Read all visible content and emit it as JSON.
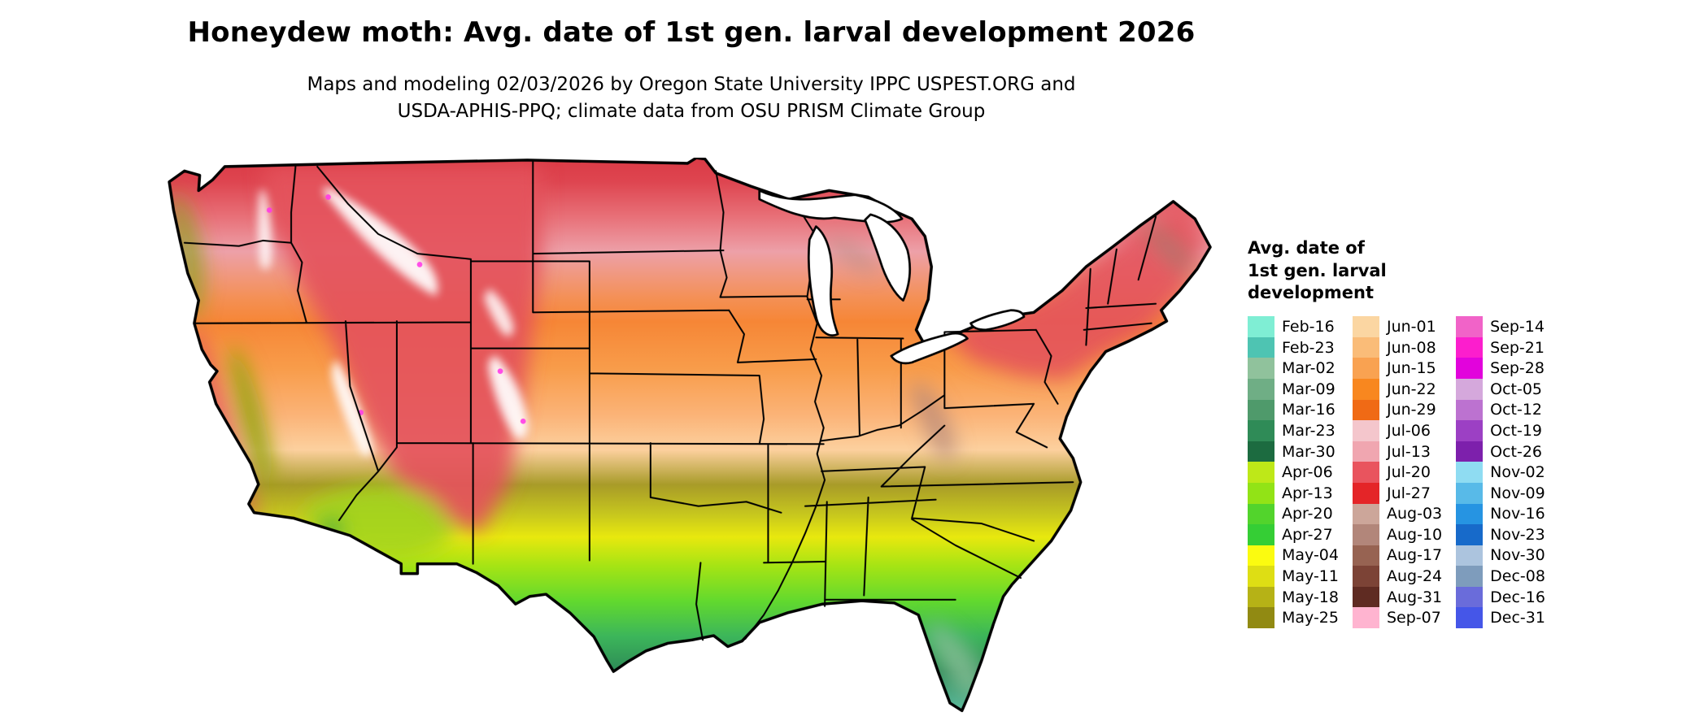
{
  "title": "Honeydew moth: Avg. date of 1st gen. larval development 2026",
  "subtitle": {
    "line1": "Maps and modeling 02/03/2026 by Oregon State University IPPC USPEST.ORG and",
    "line2": "USDA-APHIS-PPQ; climate data from OSU PRISM Climate Group"
  },
  "legend": {
    "title_line1": "Avg. date of",
    "title_line2": "1st gen. larval",
    "title_line3": "development",
    "columns": [
      {
        "entries": [
          {
            "label": "Feb-16",
            "color": "#7FEED4"
          },
          {
            "label": "Feb-23",
            "color": "#4EC4B2"
          },
          {
            "label": "Mar-02",
            "color": "#90C29C"
          },
          {
            "label": "Mar-09",
            "color": "#6FAE85"
          },
          {
            "label": "Mar-16",
            "color": "#4F9A6B"
          },
          {
            "label": "Mar-23",
            "color": "#2F8B57"
          },
          {
            "label": "Mar-30",
            "color": "#1C6B40"
          },
          {
            "label": "Apr-06",
            "color": "#BEE818"
          },
          {
            "label": "Apr-13",
            "color": "#92E316"
          },
          {
            "label": "Apr-20",
            "color": "#52D42C"
          },
          {
            "label": "Apr-27",
            "color": "#35CE35"
          },
          {
            "label": "May-04",
            "color": "#FBFB10"
          },
          {
            "label": "May-11",
            "color": "#DEDE14"
          },
          {
            "label": "May-18",
            "color": "#B6B216"
          },
          {
            "label": "May-25",
            "color": "#918A12"
          }
        ]
      },
      {
        "entries": [
          {
            "label": "Jun-01",
            "color": "#FBD6A2"
          },
          {
            "label": "Jun-08",
            "color": "#FABC78"
          },
          {
            "label": "Jun-15",
            "color": "#F9A251"
          },
          {
            "label": "Jun-22",
            "color": "#F8871F"
          },
          {
            "label": "Jun-29",
            "color": "#F06A15"
          },
          {
            "label": "Jul-06",
            "color": "#F4C6CC"
          },
          {
            "label": "Jul-13",
            "color": "#F0A6B0"
          },
          {
            "label": "Jul-20",
            "color": "#E9545E"
          },
          {
            "label": "Jul-27",
            "color": "#E42528"
          },
          {
            "label": "Aug-03",
            "color": "#CCA69A"
          },
          {
            "label": "Aug-10",
            "color": "#B2867A"
          },
          {
            "label": "Aug-17",
            "color": "#976352"
          },
          {
            "label": "Aug-24",
            "color": "#7C4336"
          },
          {
            "label": "Aug-31",
            "color": "#5F2B22"
          },
          {
            "label": "Sep-07",
            "color": "#FFB4D0"
          }
        ]
      },
      {
        "entries": [
          {
            "label": "Sep-14",
            "color": "#F163C8"
          },
          {
            "label": "Sep-21",
            "color": "#FC1ECD"
          },
          {
            "label": "Sep-28",
            "color": "#E203DC"
          },
          {
            "label": "Oct-05",
            "color": "#D5A8DC"
          },
          {
            "label": "Oct-12",
            "color": "#BC72D0"
          },
          {
            "label": "Oct-19",
            "color": "#9C40C4"
          },
          {
            "label": "Oct-26",
            "color": "#7D20AC"
          },
          {
            "label": "Nov-02",
            "color": "#8FDCF2"
          },
          {
            "label": "Nov-09",
            "color": "#58BAE8"
          },
          {
            "label": "Nov-16",
            "color": "#2694E2"
          },
          {
            "label": "Nov-23",
            "color": "#176ACA"
          },
          {
            "label": "Nov-30",
            "color": "#ACC4DE"
          },
          {
            "label": "Dec-08",
            "color": "#7E9CBC"
          },
          {
            "label": "Dec-16",
            "color": "#6A6CDA"
          },
          {
            "label": "Dec-31",
            "color": "#4556E8"
          }
        ]
      }
    ]
  }
}
